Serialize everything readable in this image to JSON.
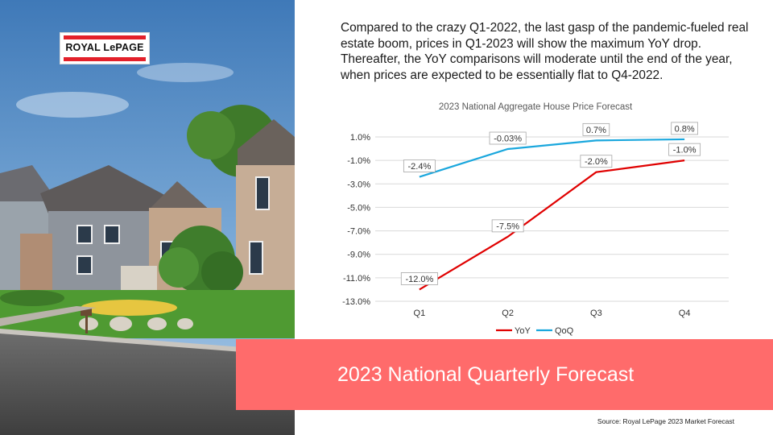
{
  "logo": {
    "text": "ROYAL LePAGE"
  },
  "description": "Compared to the crazy Q1-2022, the last gasp of the pandemic-fueled real estate boom, prices in Q1-2023 will show the maximum YoY drop. Thereafter, the YoY comparisons will moderate until the end of the year, when prices are expected to be essentially flat to Q4-2022.",
  "banner": {
    "title": "2023 National Quarterly Forecast",
    "color": "#ff6b6b"
  },
  "source": "Source: Royal LePage 2023 Market Forecast",
  "chart_data": {
    "type": "line",
    "title": "2023 National Aggregate House Price Forecast",
    "categories": [
      "Q1",
      "Q2",
      "Q3",
      "Q4"
    ],
    "y_ticks": [
      "1.0%",
      "-1.0%",
      "-3.0%",
      "-5.0%",
      "-7.0%",
      "-9.0%",
      "-11.0%",
      "-13.0%"
    ],
    "ylim": [
      -13,
      1
    ],
    "grid": true,
    "legend_position": "bottom",
    "series": [
      {
        "name": "YoY",
        "color": "#e00000",
        "values": [
          -12.0,
          -7.5,
          -2.0,
          -1.0
        ],
        "labels": [
          "-12.0%",
          "-7.5%",
          "-2.0%",
          "-1.0%"
        ]
      },
      {
        "name": "QoQ",
        "color": "#1aa7dd",
        "values": [
          -2.4,
          -0.03,
          0.7,
          0.8
        ],
        "labels": [
          "-2.4%",
          "-0.03%",
          "0.7%",
          "0.8%"
        ]
      }
    ]
  }
}
